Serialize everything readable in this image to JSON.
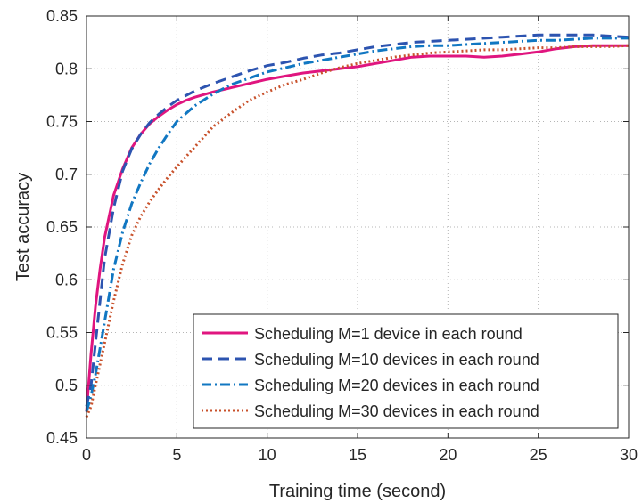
{
  "chart_data": {
    "type": "line",
    "title": "",
    "xlabel": "Training time (second)",
    "ylabel": "Test accuracy",
    "xlim": [
      0,
      30
    ],
    "ylim": [
      0.45,
      0.85
    ],
    "xticks": [
      0,
      5,
      10,
      15,
      20,
      25,
      30
    ],
    "xtick_labels": [
      "0",
      "5",
      "10",
      "15",
      "20",
      "25",
      "30"
    ],
    "yticks": [
      0.45,
      0.5,
      0.55,
      0.6,
      0.65,
      0.7,
      0.75,
      0.8,
      0.85
    ],
    "ytick_labels": [
      "0.45",
      "0.5",
      "0.55",
      "0.6",
      "0.65",
      "0.7",
      "0.75",
      "0.8",
      "0.85"
    ],
    "grid": true,
    "legend_position": "bottom-right",
    "series": [
      {
        "name": "Scheduling M=1 device in each round",
        "color": "#e0157f",
        "dash": "solid",
        "x": [
          0,
          0.25,
          0.5,
          0.75,
          1,
          1.5,
          2,
          2.5,
          3,
          3.5,
          4,
          4.5,
          5,
          5.5,
          6,
          7,
          8,
          9,
          10,
          11,
          12,
          13,
          14,
          15,
          16,
          17,
          18,
          19,
          20,
          21,
          22,
          23,
          24,
          25,
          26,
          27,
          28,
          29,
          30
        ],
        "y": [
          0.475,
          0.53,
          0.575,
          0.61,
          0.64,
          0.68,
          0.705,
          0.725,
          0.738,
          0.748,
          0.755,
          0.761,
          0.766,
          0.77,
          0.773,
          0.778,
          0.782,
          0.786,
          0.79,
          0.793,
          0.796,
          0.798,
          0.8,
          0.802,
          0.805,
          0.808,
          0.811,
          0.812,
          0.812,
          0.812,
          0.811,
          0.812,
          0.814,
          0.816,
          0.819,
          0.821,
          0.822,
          0.822,
          0.822
        ]
      },
      {
        "name": "Scheduling M=10 devices in each round",
        "color": "#2d54b0",
        "dash": "dashed",
        "x": [
          0,
          0.25,
          0.5,
          0.75,
          1,
          1.5,
          2,
          2.5,
          3,
          3.5,
          4,
          4.5,
          5,
          6,
          7,
          8,
          9,
          10,
          11,
          12,
          13,
          14,
          15,
          16,
          17,
          18,
          19,
          20,
          21,
          22,
          23,
          24,
          25,
          26,
          27,
          28,
          29,
          30
        ],
        "y": [
          0.48,
          0.5,
          0.54,
          0.58,
          0.62,
          0.668,
          0.703,
          0.724,
          0.738,
          0.749,
          0.757,
          0.764,
          0.77,
          0.779,
          0.786,
          0.792,
          0.798,
          0.803,
          0.806,
          0.81,
          0.813,
          0.815,
          0.818,
          0.821,
          0.823,
          0.825,
          0.826,
          0.827,
          0.828,
          0.829,
          0.83,
          0.831,
          0.832,
          0.832,
          0.832,
          0.832,
          0.831,
          0.83
        ]
      },
      {
        "name": "Scheduling M=20 devices in each round",
        "color": "#1177c2",
        "dash": "dashdot",
        "x": [
          0,
          0.25,
          0.5,
          0.75,
          1,
          1.5,
          2,
          2.5,
          3,
          3.5,
          4,
          4.5,
          5,
          6,
          7,
          8,
          9,
          10,
          11,
          12,
          13,
          14,
          15,
          16,
          17,
          18,
          19,
          20,
          21,
          22,
          23,
          24,
          25,
          26,
          27,
          28,
          29,
          30
        ],
        "y": [
          0.475,
          0.49,
          0.51,
          0.535,
          0.56,
          0.61,
          0.645,
          0.672,
          0.692,
          0.71,
          0.725,
          0.738,
          0.75,
          0.765,
          0.776,
          0.785,
          0.791,
          0.797,
          0.801,
          0.805,
          0.808,
          0.811,
          0.814,
          0.817,
          0.819,
          0.821,
          0.822,
          0.822,
          0.823,
          0.824,
          0.825,
          0.826,
          0.827,
          0.827,
          0.828,
          0.829,
          0.829,
          0.829
        ]
      },
      {
        "name": "Scheduling M=30 devices in each round",
        "color": "#c8512b",
        "dash": "dotted",
        "x": [
          0,
          0.25,
          0.5,
          0.75,
          1,
          1.5,
          2,
          2.5,
          3,
          3.5,
          4,
          4.5,
          5,
          6,
          7,
          8,
          9,
          10,
          11,
          12,
          13,
          14,
          15,
          16,
          17,
          18,
          19,
          20,
          21,
          22,
          23,
          24,
          25,
          26,
          27,
          28,
          29,
          30
        ],
        "y": [
          0.47,
          0.48,
          0.5,
          0.52,
          0.54,
          0.58,
          0.615,
          0.642,
          0.66,
          0.674,
          0.686,
          0.697,
          0.707,
          0.726,
          0.745,
          0.758,
          0.77,
          0.778,
          0.785,
          0.79,
          0.796,
          0.801,
          0.805,
          0.808,
          0.811,
          0.813,
          0.815,
          0.816,
          0.817,
          0.818,
          0.818,
          0.819,
          0.82,
          0.82,
          0.821,
          0.821,
          0.821,
          0.822
        ]
      }
    ]
  }
}
